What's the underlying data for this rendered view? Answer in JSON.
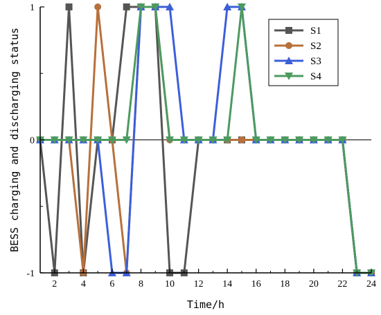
{
  "chart_data": {
    "type": "line",
    "xlabel": "Time/h",
    "ylabel": "BESS charging and discharging status",
    "x": [
      1,
      2,
      3,
      4,
      5,
      6,
      7,
      8,
      9,
      10,
      11,
      12,
      13,
      14,
      15,
      16,
      17,
      18,
      19,
      20,
      21,
      22,
      23,
      24
    ],
    "xlim": [
      1,
      24
    ],
    "ylim": [
      -1,
      1
    ],
    "x_ticks": [
      2,
      4,
      6,
      8,
      10,
      12,
      14,
      16,
      18,
      20,
      22,
      24
    ],
    "y_ticks": [
      -1,
      0,
      1
    ],
    "grid": false,
    "legend_position": "top-right",
    "series": [
      {
        "name": "S1",
        "color": "#555555",
        "marker": "square",
        "values": [
          0,
          -1,
          1,
          -1,
          0,
          0,
          1,
          1,
          1,
          -1,
          -1,
          0,
          0,
          0,
          0,
          0,
          0,
          0,
          0,
          0,
          0,
          0,
          -1,
          -1
        ]
      },
      {
        "name": "S2",
        "color": "#b8703a",
        "marker": "circle",
        "values": [
          0,
          0,
          0,
          -1,
          1,
          0,
          -1,
          1,
          1,
          0,
          0,
          0,
          0,
          0,
          0,
          0,
          0,
          0,
          0,
          0,
          0,
          0,
          -1,
          -1
        ]
      },
      {
        "name": "S3",
        "color": "#3b5fd9",
        "marker": "triangle-up",
        "values": [
          0,
          0,
          0,
          0,
          0,
          -1,
          -1,
          1,
          1,
          1,
          0,
          0,
          0,
          1,
          1,
          0,
          0,
          0,
          0,
          0,
          0,
          0,
          -1,
          -1
        ]
      },
      {
        "name": "S4",
        "color": "#4c9a60",
        "marker": "triangle-down",
        "values": [
          0,
          0,
          0,
          0,
          0,
          0,
          0,
          1,
          1,
          0,
          0,
          0,
          0,
          0,
          1,
          0,
          0,
          0,
          0,
          0,
          0,
          0,
          -1,
          -1
        ]
      }
    ]
  }
}
